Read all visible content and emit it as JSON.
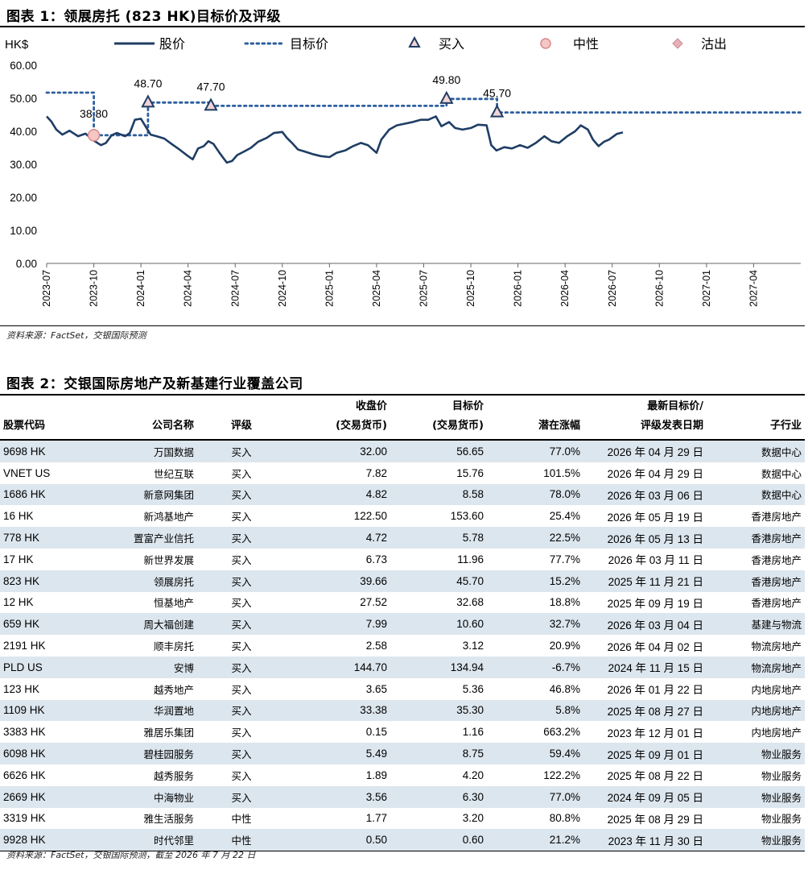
{
  "figure1": {
    "title": "图表 1：领展房托 (823 HK)目标价及评级",
    "source": "资料来源：FactSet，交银国际预测"
  },
  "chart_data": {
    "type": "line",
    "ylabel": "HK$",
    "ylim": [
      0,
      60
    ],
    "yticks": [
      "0.00",
      "10.00",
      "20.00",
      "30.00",
      "40.00",
      "50.00",
      "60.00"
    ],
    "xticks": [
      "2023-07",
      "2023-10",
      "2024-01",
      "2024-04",
      "2024-07",
      "2024-10",
      "2025-01",
      "2025-04",
      "2025-07",
      "2025-10",
      "2026-01",
      "2026-04",
      "2026-07",
      "2026-10",
      "2027-01",
      "2027-04"
    ],
    "xlim_months": [
      "2023-07",
      "2027-06"
    ],
    "legend": [
      "股价",
      "目标价",
      "买入",
      "中性",
      "沽出"
    ],
    "legend_placement": "top",
    "colors": {
      "price": "#1f3d64",
      "target": "#2e5f9e",
      "buy": "#f2d4d7",
      "buy_edge": "#1f3d64",
      "neutral": "#f4c7c5",
      "neutral_edge": "#d98a8a",
      "sell": "#e8b0b8"
    },
    "price_series": [
      [
        "2023-07-01",
        44.5
      ],
      [
        "2023-07-10",
        43.0
      ],
      [
        "2023-07-20",
        40.5
      ],
      [
        "2023-08-01",
        39.0
      ],
      [
        "2023-08-15",
        40.2
      ],
      [
        "2023-09-01",
        38.5
      ],
      [
        "2023-09-15",
        39.3
      ],
      [
        "2023-10-01",
        37.2
      ],
      [
        "2023-10-15",
        35.8
      ],
      [
        "2023-10-25",
        36.5
      ],
      [
        "2023-11-05",
        38.8
      ],
      [
        "2023-11-15",
        39.5
      ],
      [
        "2023-12-01",
        38.5
      ],
      [
        "2023-12-10",
        39.5
      ],
      [
        "2023-12-20",
        43.5
      ],
      [
        "2024-01-01",
        43.8
      ],
      [
        "2024-01-10",
        41.5
      ],
      [
        "2024-01-20",
        39.0
      ],
      [
        "2024-02-01",
        38.5
      ],
      [
        "2024-02-15",
        37.8
      ],
      [
        "2024-03-01",
        36.0
      ],
      [
        "2024-03-15",
        34.5
      ],
      [
        "2024-04-01",
        32.5
      ],
      [
        "2024-04-10",
        31.5
      ],
      [
        "2024-04-20",
        34.8
      ],
      [
        "2024-05-01",
        35.5
      ],
      [
        "2024-05-10",
        37.0
      ],
      [
        "2024-05-20",
        36.2
      ],
      [
        "2024-06-01",
        33.5
      ],
      [
        "2024-06-15",
        30.5
      ],
      [
        "2024-06-25",
        31.0
      ],
      [
        "2024-07-05",
        32.8
      ],
      [
        "2024-07-20",
        34.0
      ],
      [
        "2024-08-01",
        35.0
      ],
      [
        "2024-08-15",
        36.8
      ],
      [
        "2024-09-01",
        38.0
      ],
      [
        "2024-09-15",
        39.5
      ],
      [
        "2024-10-01",
        39.8
      ],
      [
        "2024-10-10",
        38.0
      ],
      [
        "2024-10-20",
        36.5
      ],
      [
        "2024-11-01",
        34.5
      ],
      [
        "2024-11-15",
        33.8
      ],
      [
        "2024-12-01",
        33.0
      ],
      [
        "2024-12-15",
        32.5
      ],
      [
        "2025-01-01",
        32.2
      ],
      [
        "2025-01-15",
        33.5
      ],
      [
        "2025-02-01",
        34.2
      ],
      [
        "2025-02-15",
        35.5
      ],
      [
        "2025-03-01",
        36.5
      ],
      [
        "2025-03-15",
        35.8
      ],
      [
        "2025-04-01",
        33.5
      ],
      [
        "2025-04-10",
        37.5
      ],
      [
        "2025-04-25",
        40.5
      ],
      [
        "2025-05-10",
        41.8
      ],
      [
        "2025-05-25",
        42.3
      ],
      [
        "2025-06-10",
        42.8
      ],
      [
        "2025-06-25",
        43.5
      ],
      [
        "2025-07-10",
        43.5
      ],
      [
        "2025-07-25",
        44.5
      ],
      [
        "2025-08-05",
        41.5
      ],
      [
        "2025-08-20",
        42.8
      ],
      [
        "2025-09-01",
        41.0
      ],
      [
        "2025-09-15",
        40.5
      ],
      [
        "2025-10-01",
        41.0
      ],
      [
        "2025-10-15",
        42.0
      ],
      [
        "2025-11-01",
        41.8
      ],
      [
        "2025-11-10",
        35.8
      ],
      [
        "2025-11-20",
        34.2
      ],
      [
        "2025-12-05",
        35.2
      ],
      [
        "2025-12-20",
        34.8
      ],
      [
        "2026-01-05",
        35.8
      ],
      [
        "2026-01-20",
        35.0
      ],
      [
        "2026-02-05",
        36.5
      ],
      [
        "2026-02-20",
        38.5
      ],
      [
        "2026-03-05",
        37.0
      ],
      [
        "2026-03-20",
        36.5
      ],
      [
        "2026-04-05",
        38.5
      ],
      [
        "2026-04-20",
        40.0
      ],
      [
        "2026-05-01",
        41.8
      ],
      [
        "2026-05-15",
        40.5
      ],
      [
        "2026-05-25",
        37.5
      ],
      [
        "2026-06-05",
        35.5
      ],
      [
        "2026-06-15",
        36.8
      ],
      [
        "2026-06-25",
        37.5
      ],
      [
        "2026-07-10",
        39.2
      ],
      [
        "2026-07-22",
        39.66
      ]
    ],
    "target_series": [
      [
        "2023-07-01",
        51.7
      ],
      [
        "2023-10-01",
        51.7
      ],
      [
        "2023-10-01",
        38.8
      ],
      [
        "2024-01-15",
        38.8
      ],
      [
        "2024-01-15",
        48.7
      ],
      [
        "2024-05-15",
        48.7
      ],
      [
        "2024-05-15",
        47.7
      ],
      [
        "2025-08-15",
        47.7
      ],
      [
        "2025-08-15",
        49.8
      ],
      [
        "2025-11-21",
        49.8
      ],
      [
        "2025-11-21",
        45.7
      ],
      [
        "2027-06-30",
        45.7
      ]
    ],
    "ratings": [
      {
        "date": "2023-10-01",
        "value": 38.8,
        "rating": "中性",
        "label": "38.80"
      },
      {
        "date": "2024-01-15",
        "value": 48.7,
        "rating": "买入",
        "label": "48.70"
      },
      {
        "date": "2024-05-15",
        "value": 47.7,
        "rating": "买入",
        "label": "47.70"
      },
      {
        "date": "2025-08-15",
        "value": 49.8,
        "rating": "买入",
        "label": "49.80"
      },
      {
        "date": "2025-11-21",
        "value": 45.7,
        "rating": "买入",
        "label": "45.70"
      }
    ]
  },
  "figure2": {
    "title": "图表 2：交银国际房地产及新基建行业覆盖公司",
    "source": "资料来源：FactSet，交银国际预测，截至 2026 年 7 月 22 日",
    "headers": {
      "code": "股票代码",
      "name": "公司名称",
      "rating": "评级",
      "close_1": "收盘价",
      "close_2": "(交易货币)",
      "target_1": "目标价",
      "target_2": "(交易货币)",
      "upside": "潜在涨幅",
      "date_1": "最新目标价/",
      "date_2": "评级发表日期",
      "sector": "子行业"
    },
    "rows": [
      {
        "code": "9698 HK",
        "name": "万国数据",
        "rating": "买入",
        "close": "32.00",
        "target": "56.65",
        "upside": "77.0%",
        "date": "2026 年 04 月 29 日",
        "sector": "数据中心"
      },
      {
        "code": "VNET US",
        "name": "世纪互联",
        "rating": "买入",
        "close": "7.82",
        "target": "15.76",
        "upside": "101.5%",
        "date": "2026 年 04 月 29 日",
        "sector": "数据中心"
      },
      {
        "code": "1686 HK",
        "name": "新意网集团",
        "rating": "买入",
        "close": "4.82",
        "target": "8.58",
        "upside": "78.0%",
        "date": "2026 年 03 月 06 日",
        "sector": "数据中心"
      },
      {
        "code": "16 HK",
        "name": "新鸿基地产",
        "rating": "买入",
        "close": "122.50",
        "target": "153.60",
        "upside": "25.4%",
        "date": "2026 年 05 月 19 日",
        "sector": "香港房地产"
      },
      {
        "code": "778 HK",
        "name": "置富产业信托",
        "rating": "买入",
        "close": "4.72",
        "target": "5.78",
        "upside": "22.5%",
        "date": "2026 年 05 月 13 日",
        "sector": "香港房地产"
      },
      {
        "code": "17 HK",
        "name": "新世界发展",
        "rating": "买入",
        "close": "6.73",
        "target": "11.96",
        "upside": "77.7%",
        "date": "2026 年 03 月 11 日",
        "sector": "香港房地产"
      },
      {
        "code": "823 HK",
        "name": "领展房托",
        "rating": "买入",
        "close": "39.66",
        "target": "45.70",
        "upside": "15.2%",
        "date": "2025 年 11 月 21 日",
        "sector": "香港房地产"
      },
      {
        "code": "12 HK",
        "name": "恒基地产",
        "rating": "买入",
        "close": "27.52",
        "target": "32.68",
        "upside": "18.8%",
        "date": "2025 年 09 月 19 日",
        "sector": "香港房地产"
      },
      {
        "code": "659 HK",
        "name": "周大福创建",
        "rating": "买入",
        "close": "7.99",
        "target": "10.60",
        "upside": "32.7%",
        "date": "2026 年 03 月 04 日",
        "sector": "基建与物流"
      },
      {
        "code": "2191 HK",
        "name": "顺丰房托",
        "rating": "买入",
        "close": "2.58",
        "target": "3.12",
        "upside": "20.9%",
        "date": "2026 年 04 月 02 日",
        "sector": "物流房地产"
      },
      {
        "code": "PLD US",
        "name": "安博",
        "rating": "买入",
        "close": "144.70",
        "target": "134.94",
        "upside": "-6.7%",
        "date": "2024 年 11 月 15 日",
        "sector": "物流房地产"
      },
      {
        "code": "123 HK",
        "name": "越秀地产",
        "rating": "买入",
        "close": "3.65",
        "target": "5.36",
        "upside": "46.8%",
        "date": "2026 年 01 月 22 日",
        "sector": "内地房地产"
      },
      {
        "code": "1109 HK",
        "name": "华润置地",
        "rating": "买入",
        "close": "33.38",
        "target": "35.30",
        "upside": "5.8%",
        "date": "2025 年 08 月 27 日",
        "sector": "内地房地产"
      },
      {
        "code": "3383 HK",
        "name": "雅居乐集团",
        "rating": "买入",
        "close": "0.15",
        "target": "1.16",
        "upside": "663.2%",
        "date": "2023 年 12 月 01 日",
        "sector": "内地房地产"
      },
      {
        "code": "6098 HK",
        "name": "碧桂园服务",
        "rating": "买入",
        "close": "5.49",
        "target": "8.75",
        "upside": "59.4%",
        "date": "2025 年 09 月 01 日",
        "sector": "物业服务"
      },
      {
        "code": "6626 HK",
        "name": "越秀服务",
        "rating": "买入",
        "close": "1.89",
        "target": "4.20",
        "upside": "122.2%",
        "date": "2025 年 08 月 22 日",
        "sector": "物业服务"
      },
      {
        "code": "2669 HK",
        "name": "中海物业",
        "rating": "买入",
        "close": "3.56",
        "target": "6.30",
        "upside": "77.0%",
        "date": "2024 年 09 月 05 日",
        "sector": "物业服务"
      },
      {
        "code": "3319 HK",
        "name": "雅生活服务",
        "rating": "中性",
        "close": "1.77",
        "target": "3.20",
        "upside": "80.8%",
        "date": "2025 年 08 月 29 日",
        "sector": "物业服务"
      },
      {
        "code": "9928 HK",
        "name": "时代邻里",
        "rating": "中性",
        "close": "0.50",
        "target": "0.60",
        "upside": "21.2%",
        "date": "2023 年 11 月 30 日",
        "sector": "物业服务"
      }
    ]
  }
}
